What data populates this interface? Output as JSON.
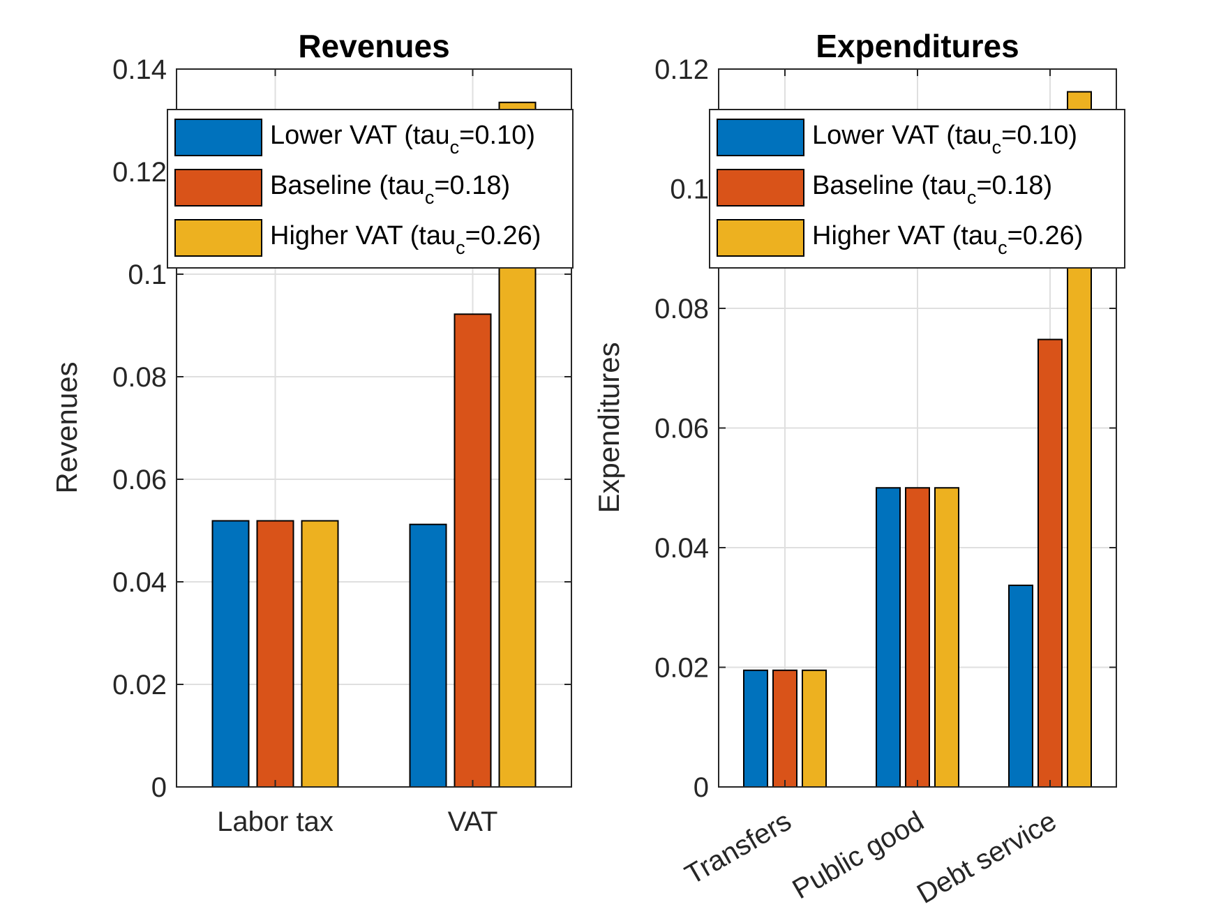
{
  "chart_data": [
    {
      "type": "bar",
      "title": "Revenues",
      "ylabel": "Revenues",
      "xlabel": "",
      "categories": [
        "Labor tax",
        "VAT"
      ],
      "ylim": [
        0,
        0.14
      ],
      "yticks": [
        0,
        0.02,
        0.04,
        0.06,
        0.08,
        0.1,
        0.12,
        0.14
      ],
      "ytick_labels": [
        "0",
        "0.02",
        "0.04",
        "0.06",
        "0.08",
        "0.1",
        "0.12",
        "0.14"
      ],
      "grid": true,
      "legend_position": "top",
      "series": [
        {
          "name": "Lower VAT (tau",
          "name_sub": "c",
          "name_tail": "=0.10)",
          "color": "#0072BD",
          "values": [
            0.0519,
            0.0512
          ]
        },
        {
          "name": "Baseline (tau",
          "name_sub": "c",
          "name_tail": "=0.18)",
          "color": "#D95319",
          "values": [
            0.0519,
            0.0922
          ]
        },
        {
          "name": "Higher VAT (tau",
          "name_sub": "c",
          "name_tail": "=0.26)",
          "color": "#EDB120",
          "values": [
            0.0519,
            0.1335
          ]
        }
      ]
    },
    {
      "type": "bar",
      "title": "Expenditures",
      "ylabel": "Expenditures",
      "xlabel": "",
      "categories": [
        "Transfers",
        "Public good",
        "Debt service"
      ],
      "ylim": [
        0,
        0.12
      ],
      "yticks": [
        0,
        0.02,
        0.04,
        0.06,
        0.08,
        0.1,
        0.12
      ],
      "ytick_labels": [
        "0",
        "0.02",
        "0.04",
        "0.06",
        "0.08",
        "0.1",
        "0.12"
      ],
      "grid": true,
      "legend_position": "top",
      "xtick_rotation": 30,
      "series": [
        {
          "name": "Lower VAT (tau",
          "name_sub": "c",
          "name_tail": "=0.10)",
          "color": "#0072BD",
          "values": [
            0.0195,
            0.05,
            0.0337
          ]
        },
        {
          "name": "Baseline (tau",
          "name_sub": "c",
          "name_tail": "=0.18)",
          "color": "#D95319",
          "values": [
            0.0195,
            0.05,
            0.0748
          ]
        },
        {
          "name": "Higher VAT (tau",
          "name_sub": "c",
          "name_tail": "=0.26)",
          "color": "#EDB120",
          "values": [
            0.0195,
            0.05,
            0.1162
          ]
        }
      ]
    }
  ]
}
